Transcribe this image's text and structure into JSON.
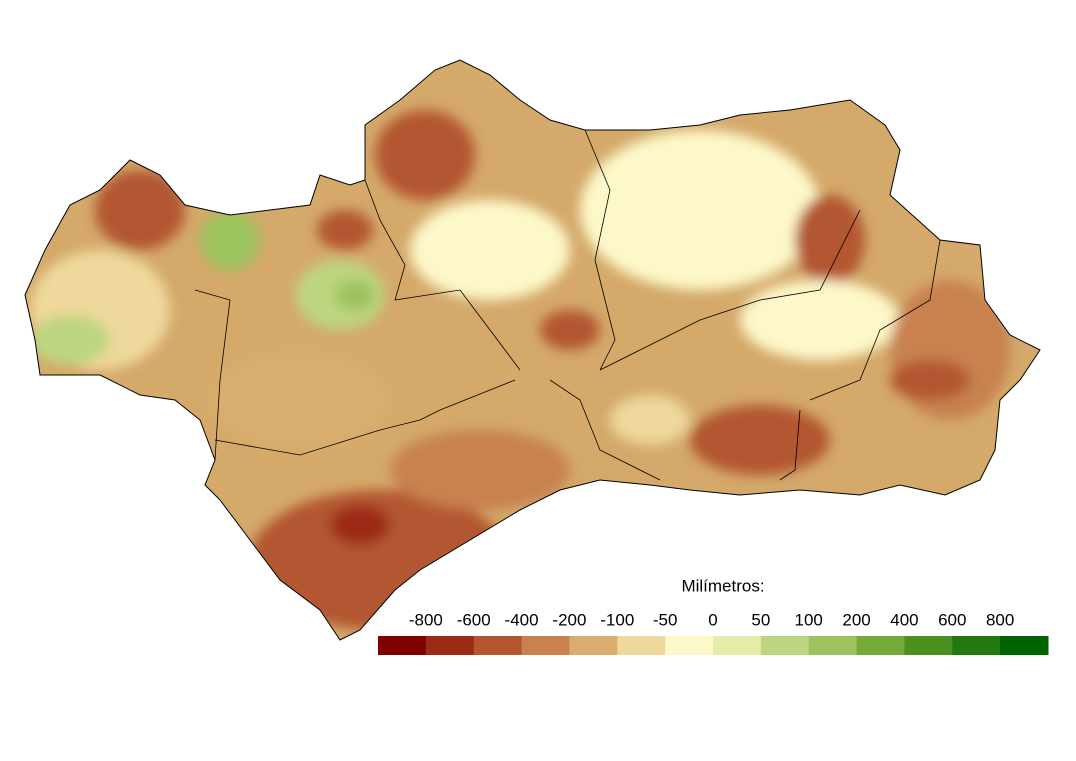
{
  "legend": {
    "title": "Milímetros:",
    "labels": [
      "-800",
      "-600",
      "-400",
      "-200",
      "-100",
      "-50",
      "0",
      "50",
      "100",
      "200",
      "400",
      "600",
      "800"
    ],
    "colors": [
      "#800000",
      "#9c2b14",
      "#b35630",
      "#c8814f",
      "#d8ad6e",
      "#eed89c",
      "#fdf8c9",
      "#e5ecaa",
      "#bdd57f",
      "#9cc35d",
      "#75aa38",
      "#4c9120",
      "#23790f",
      "#006400"
    ]
  }
}
